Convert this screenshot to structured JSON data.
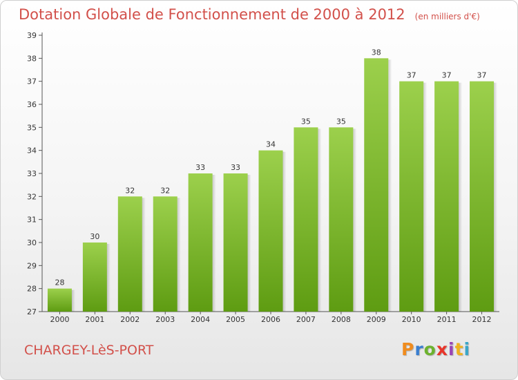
{
  "header": {
    "title": "Dotation Globale de Fonctionnement de 2000 à 2012",
    "unit": "(en milliers d'€)"
  },
  "footer": {
    "commune": "CHARGEY-LèS-PORT",
    "logo_letters": [
      "P",
      "r",
      "o",
      "x",
      "i",
      "t",
      "i"
    ],
    "logo_colors": [
      "#f08c1e",
      "#3a7fd0",
      "#6cb22e",
      "#e8352a",
      "#9a45b5",
      "#f0b21e",
      "#3aa6c8"
    ]
  },
  "colors": {
    "bar_top": "#9cd04c",
    "bar_bottom": "#5e9c12",
    "title": "#d2504a"
  },
  "chart_data": {
    "type": "bar",
    "categories": [
      "2000",
      "2001",
      "2002",
      "2003",
      "2004",
      "2005",
      "2006",
      "2007",
      "2008",
      "2009",
      "2010",
      "2011",
      "2012"
    ],
    "values": [
      28,
      30,
      32,
      32,
      33,
      33,
      34,
      35,
      35,
      38,
      37,
      37,
      37
    ],
    "data_labels": [
      "28",
      "30",
      "32",
      "32",
      "33",
      "33",
      "34",
      "35",
      "35",
      "38",
      "37",
      "37",
      "37"
    ],
    "title": "Dotation Globale de Fonctionnement de 2000 à 2012",
    "xlabel": "",
    "ylabel": "",
    "ylim": [
      27,
      39
    ],
    "yticks": [
      27,
      28,
      29,
      30,
      31,
      32,
      33,
      34,
      35,
      36,
      37,
      38,
      39
    ],
    "grid": false,
    "legend": "none"
  }
}
